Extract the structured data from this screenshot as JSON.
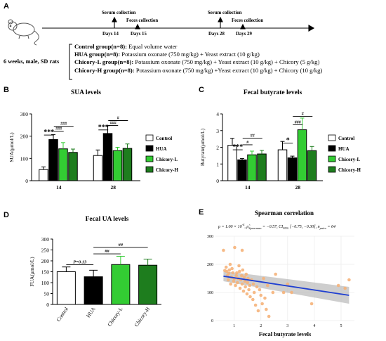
{
  "panel_letters": {
    "A": "A",
    "B": "B",
    "C": "C",
    "D": "D",
    "E": "E"
  },
  "timeline": {
    "serum_1": "Serum collection",
    "feces_1": "Feces collection",
    "day14": "Days 14",
    "day15": "Days 15",
    "serum_2": "Serum collection",
    "feces_2": "Feces collection",
    "day28": "Days 28",
    "day29": "Days 29"
  },
  "rats_label": "6 weeks, male, SD rats",
  "groups": [
    {
      "name": "Control group(n=8):",
      "desc": " Equal volume water"
    },
    {
      "name": "HUA group(n=8):",
      "desc": " Potassium oxonate (750 mg/kg) + Yeast extract (10 g/kg)"
    },
    {
      "name": "Chicory-L group(n=8):",
      "desc": " Potassium oxonate (750 mg/kg) + Yeast extract (10 g/kg) + Chicory (5 g/kg)"
    },
    {
      "name": "Chicory-H group(n=8):",
      "desc": " Potassium oxonate (750 mg/kg) +Yeast extract (10 g/kg) + Chicory (10 g/kg)"
    }
  ],
  "colors": {
    "Control": "#ffffff",
    "HUA": "#000000",
    "Chicory-L": "#33cc33",
    "Chicory-H": "#1e7d1e",
    "scatter": "#f5b27a",
    "regression": "#1f3fd1",
    "ci_band": "#bdbdbd"
  },
  "chart_data": [
    {
      "id": "B",
      "type": "bar",
      "title": "SUA levels",
      "xlabel": "",
      "ylabel": "SUA(μmol/L)",
      "categories": [
        "14",
        "28"
      ],
      "ylim": [
        0,
        300
      ],
      "yticks": [
        0,
        100,
        200,
        300
      ],
      "series": [
        {
          "name": "Control",
          "values": [
            50,
            113
          ],
          "errors": [
            12,
            25
          ]
        },
        {
          "name": "HUA",
          "values": [
            185,
            212
          ],
          "errors": [
            22,
            35
          ]
        },
        {
          "name": "Chicory-L",
          "values": [
            143,
            135
          ],
          "errors": [
            28,
            15
          ]
        },
        {
          "name": "Chicory-H",
          "values": [
            127,
            145
          ],
          "errors": [
            15,
            20
          ]
        }
      ],
      "legend": [
        "Control",
        "HUA",
        "Chicory-L",
        "Chicory-H"
      ],
      "annotations": [
        {
          "label": "***",
          "g": 0,
          "from": 0,
          "to": 1,
          "y": 205
        },
        {
          "label": "###",
          "g": 0,
          "from": 1,
          "to": 2,
          "y": 222
        },
        {
          "label": "###",
          "g": 0,
          "from": 1,
          "to": 3,
          "y": 244
        },
        {
          "label": "***",
          "g": 1,
          "from": 0,
          "to": 1,
          "y": 228
        },
        {
          "label": "###",
          "g": 1,
          "from": 1,
          "to": 2,
          "y": 248
        },
        {
          "label": "#",
          "g": 1,
          "from": 1,
          "to": 3,
          "y": 270
        }
      ]
    },
    {
      "id": "C",
      "type": "bar",
      "title": "Fecal butyrate levels",
      "xlabel": "",
      "ylabel": "Butyrate(μmol/L)",
      "categories": [
        "14",
        "28"
      ],
      "ylim": [
        0,
        4
      ],
      "yticks": [
        0,
        1,
        2,
        3,
        4
      ],
      "series": [
        {
          "name": "Control",
          "values": [
            2.12,
            1.85
          ],
          "errors": [
            0.42,
            0.5
          ]
        },
        {
          "name": "HUA",
          "values": [
            1.25,
            1.37
          ],
          "errors": [
            0.08,
            0.1
          ]
        },
        {
          "name": "Chicory-L",
          "values": [
            1.55,
            3.05
          ],
          "errors": [
            0.22,
            0.7
          ]
        },
        {
          "name": "Chicory-H",
          "values": [
            1.6,
            1.8
          ],
          "errors": [
            0.22,
            0.25
          ]
        }
      ],
      "legend": [
        "Control",
        "HUA",
        "Chicory-L",
        "Chicory-H"
      ],
      "annotations": [
        {
          "label": "***",
          "g": 0,
          "from": 0,
          "to": 1,
          "y": 1.85
        },
        {
          "label": "#",
          "g": 0,
          "from": 1,
          "to": 2,
          "y": 2.15
        },
        {
          "label": "##",
          "g": 0,
          "from": 1,
          "to": 3,
          "y": 2.55
        },
        {
          "label": "*",
          "g": 1,
          "from": 0,
          "to": 1,
          "y": 2.25
        },
        {
          "label": "###",
          "g": 1,
          "from": 1,
          "to": 2,
          "y": 3.35
        },
        {
          "label": "#",
          "g": 1,
          "from": 1,
          "to": 3,
          "y": 3.85
        }
      ]
    },
    {
      "id": "D",
      "type": "bar",
      "title": "Fecal UA levels",
      "xlabel": "",
      "ylabel": "FUA(μmol/L)",
      "categories": [
        "Control",
        "HUA",
        "Chicory-L",
        "Chicory-H"
      ],
      "ylim": [
        0,
        300
      ],
      "yticks": [
        0,
        50,
        100,
        150,
        200,
        250,
        300
      ],
      "values": [
        150,
        127,
        183,
        180
      ],
      "errors": [
        22,
        30,
        38,
        28
      ],
      "annotations": [
        {
          "label": "P=0.13",
          "from": 0,
          "to": 1,
          "y": 182
        },
        {
          "label": "##",
          "from": 1,
          "to": 2,
          "y": 232
        },
        {
          "label": "##",
          "from": 1,
          "to": 3,
          "y": 262
        }
      ]
    },
    {
      "id": "E",
      "type": "scatter",
      "title": "Spearman correlation",
      "stats_text": {
        "p": "p = 1.00 × 10",
        "p_exp": "-4",
        "rho": ", ρ̂",
        "rho_sub": "Spearman",
        "rho_val": " = −0.57, CI",
        "ci_sub": "95%",
        "ci_val": " [−0.75, −0.30], n",
        "n_sub": "pairs",
        "n_val": " = 64"
      },
      "xlabel": "Fecal butyrate levels",
      "ylabel": "",
      "xlim": [
        0.3,
        5.5
      ],
      "ylim": [
        0,
        300
      ],
      "xticks": [
        1,
        2,
        3,
        4,
        5
      ],
      "yticks": [
        0,
        100,
        200,
        300
      ],
      "regression": {
        "x0": 0.6,
        "y0": 158,
        "x1": 5.3,
        "y1": 90,
        "band_lo_left": 140,
        "band_hi_left": 176,
        "band_lo_right": 60,
        "band_hi_right": 120
      },
      "points": [
        [
          0.6,
          250
        ],
        [
          0.65,
          178
        ],
        [
          0.7,
          190
        ],
        [
          0.72,
          175
        ],
        [
          0.75,
          160
        ],
        [
          0.78,
          145
        ],
        [
          0.8,
          168
        ],
        [
          0.82,
          180
        ],
        [
          0.85,
          200
        ],
        [
          0.87,
          130
        ],
        [
          0.9,
          155
        ],
        [
          0.92,
          185
        ],
        [
          0.95,
          170
        ],
        [
          0.98,
          140
        ],
        [
          1.0,
          150
        ],
        [
          1.02,
          260
        ],
        [
          1.05,
          125
        ],
        [
          1.08,
          160
        ],
        [
          1.1,
          170
        ],
        [
          1.12,
          135
        ],
        [
          1.15,
          150
        ],
        [
          1.18,
          195
        ],
        [
          1.2,
          175
        ],
        [
          1.22,
          115
        ],
        [
          1.25,
          145
        ],
        [
          1.28,
          160
        ],
        [
          1.3,
          130
        ],
        [
          1.32,
          180
        ],
        [
          1.35,
          105
        ],
        [
          1.38,
          155
        ],
        [
          1.4,
          140
        ],
        [
          1.42,
          120
        ],
        [
          1.45,
          165
        ],
        [
          1.48,
          95
        ],
        [
          1.5,
          135
        ],
        [
          1.52,
          150
        ],
        [
          1.55,
          110
        ],
        [
          1.58,
          125
        ],
        [
          1.6,
          85
        ],
        [
          1.65,
          145
        ],
        [
          1.7,
          75
        ],
        [
          1.72,
          130
        ],
        [
          1.75,
          100
        ],
        [
          1.8,
          55
        ],
        [
          1.85,
          120
        ],
        [
          1.9,
          35
        ],
        [
          1.95,
          110
        ],
        [
          2.0,
          90
        ],
        [
          2.05,
          60
        ],
        [
          2.1,
          150
        ],
        [
          2.15,
          80
        ],
        [
          2.2,
          40
        ],
        [
          2.25,
          125
        ],
        [
          2.3,
          15
        ],
        [
          2.45,
          100
        ],
        [
          2.55,
          165
        ],
        [
          2.85,
          100
        ],
        [
          3.0,
          130
        ],
        [
          3.15,
          100
        ],
        [
          3.9,
          60
        ],
        [
          4.9,
          125
        ],
        [
          5.15,
          115
        ],
        [
          5.3,
          145
        ],
        [
          1.3,
          250
        ]
      ]
    }
  ]
}
